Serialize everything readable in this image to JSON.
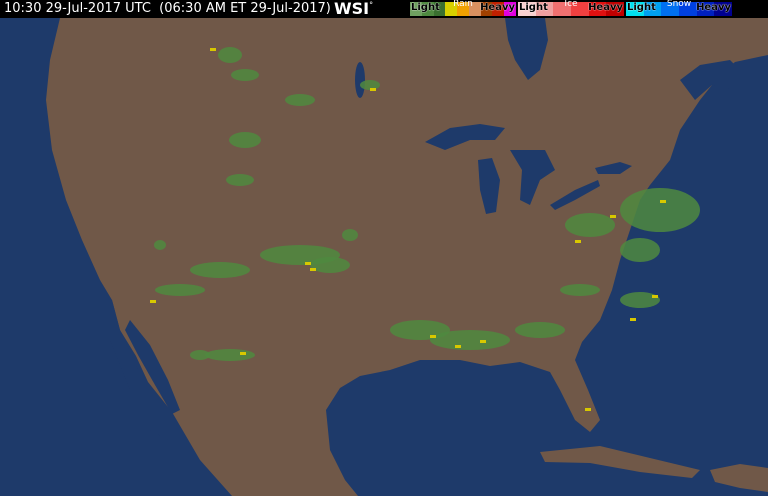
{
  "header": {
    "timestamp": "10:30 29-Jul-2017 UTC  (06:30 AM ET 29-Jul-2017)",
    "logo": "WSI",
    "logo_mark": "°"
  },
  "legend": [
    {
      "type": "Rain",
      "light": "Light",
      "heavy": "Heavy",
      "colors": [
        "#6fa060",
        "#4f8a40",
        "#3a7030",
        "#d8d000",
        "#f0a000",
        "#d89060",
        "#a04000",
        "#c02000",
        "#e000e0"
      ]
    },
    {
      "type": "Ice",
      "light": "Light",
      "heavy": "Heavy",
      "colors": [
        "#f8d0d0",
        "#f0a0a0",
        "#f07070",
        "#f04040",
        "#e01010",
        "#c00000"
      ]
    },
    {
      "type": "Snow",
      "light": "Light",
      "heavy": "Heavy",
      "colors": [
        "#00e0f0",
        "#00a0f0",
        "#0070f0",
        "#0040e0",
        "#0020c0",
        "#000090"
      ]
    }
  ],
  "colors": {
    "land": "#705848",
    "water": "#1e3a6a",
    "radar_light": "#4f8a40",
    "radar_moderate": "#d8c800"
  }
}
